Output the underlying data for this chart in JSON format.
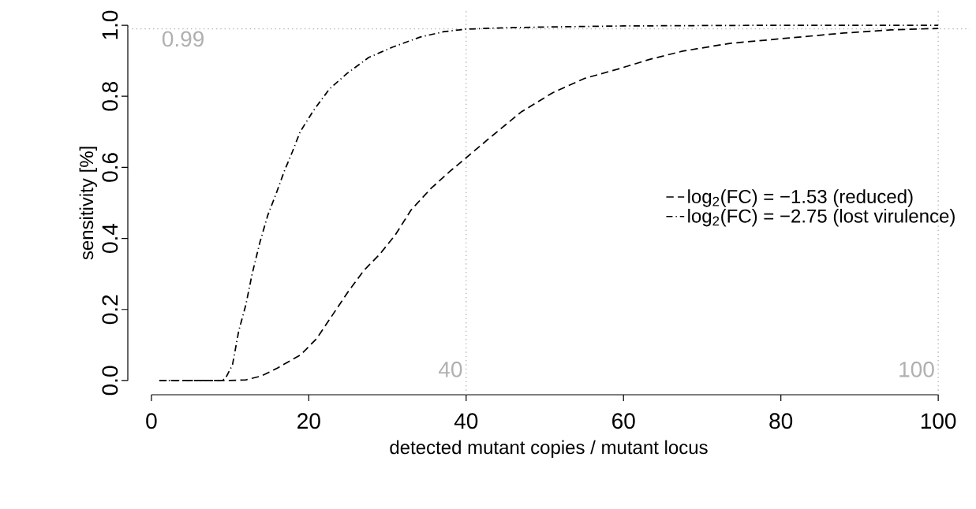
{
  "chart_data": {
    "type": "line",
    "xlabel": "detected mutant copies / mutant locus",
    "ylabel": "sensitivity [%]",
    "xlim": [
      -3,
      104
    ],
    "ylim": [
      -0.04,
      1.04
    ],
    "xticks": [
      0,
      20,
      40,
      60,
      80,
      100
    ],
    "yticks": [
      {
        "value": 0,
        "label": "0.0"
      },
      {
        "value": 0.2,
        "label": "0.2"
      },
      {
        "value": 0.4,
        "label": "0.4"
      },
      {
        "value": 0.6,
        "label": "0.6"
      },
      {
        "value": 0.8,
        "label": "0.8"
      },
      {
        "value": 1,
        "label": "1.0"
      }
    ],
    "legend": "right",
    "grid": false,
    "marker": "none",
    "series": [
      {
        "name": "log$_{2}$(FC) = −1.53 (reduced)",
        "color": "#000000",
        "line_style": "dashed",
        "x": [
          1,
          5,
          10,
          12,
          14,
          16,
          19,
          21,
          23,
          25,
          27,
          29,
          31,
          33,
          35.5,
          38,
          40,
          43,
          47,
          51,
          55,
          59.5,
          63.5,
          67.5,
          73.5,
          80,
          88,
          94,
          100
        ],
        "values": [
          0,
          0,
          0,
          0.002,
          0.013,
          0.035,
          0.073,
          0.118,
          0.184,
          0.25,
          0.31,
          0.355,
          0.41,
          0.48,
          0.54,
          0.59,
          0.627,
          0.683,
          0.756,
          0.81,
          0.85,
          0.878,
          0.905,
          0.927,
          0.949,
          0.962,
          0.978,
          0.987,
          0.991
        ]
      },
      {
        "name": "log$_{2}$(FC) = −2.75 (lost virulence)",
        "color": "#000000",
        "line_style": "dashdot",
        "x": [
          1,
          5,
          9,
          9.5,
          10.3,
          11.1,
          12,
          12.8,
          13.8,
          14.8,
          15.8,
          16.9,
          17.9,
          18.9,
          20.6,
          22.6,
          24.9,
          27.6,
          30.6,
          34.2,
          37.2,
          40,
          45,
          50,
          60,
          70,
          80,
          90,
          100
        ],
        "values": [
          0,
          0,
          0,
          0.01,
          0.044,
          0.14,
          0.213,
          0.3,
          0.39,
          0.466,
          0.523,
          0.59,
          0.643,
          0.7,
          0.76,
          0.82,
          0.865,
          0.909,
          0.938,
          0.967,
          0.982,
          0.989,
          0.993,
          0.995,
          0.998,
          0.999,
          1,
          1,
          1
        ]
      }
    ],
    "ref_lines": [
      {
        "axis": "y",
        "value": 0.99,
        "label": "0.99",
        "color": "#b0b0b0",
        "line_style": "dotted"
      },
      {
        "axis": "x",
        "value": 40,
        "label": "40",
        "color": "#b0b0b0",
        "line_style": "dotted"
      },
      {
        "axis": "x",
        "value": 100,
        "label": "100",
        "color": "#b0b0b0",
        "line_style": "dotted"
      }
    ]
  }
}
